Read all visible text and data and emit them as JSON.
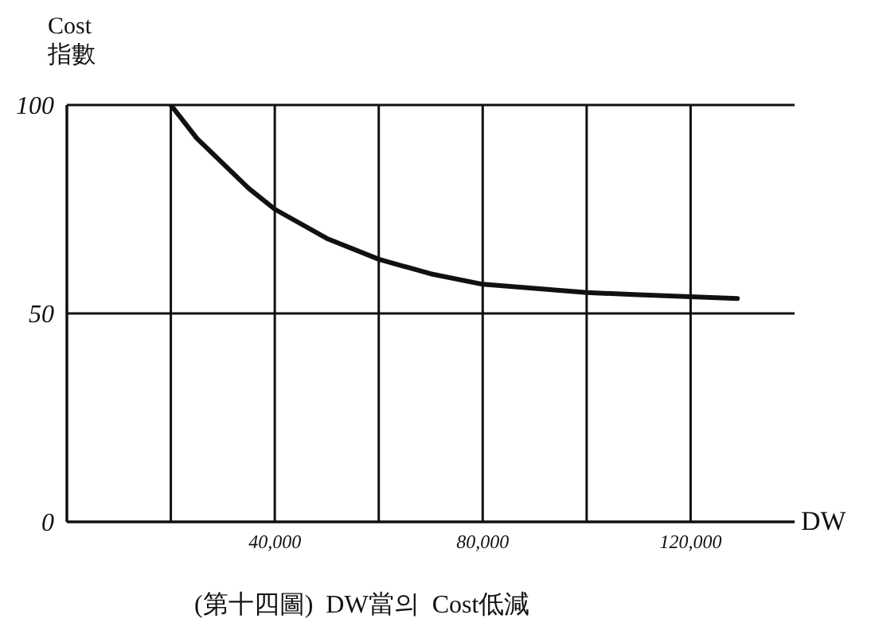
{
  "chart_data": {
    "type": "line",
    "xlabel": "DW",
    "ylabel": "Cost\n指數",
    "annotations": [
      "(第十四圖)  DW當의  Cost低減"
    ],
    "x": [
      20000,
      25000,
      30000,
      35000,
      40000,
      50000,
      60000,
      70000,
      80000,
      90000,
      100000,
      110000,
      120000,
      129000
    ],
    "series": [
      {
        "color": "#111111",
        "values": [
          100,
          92,
          86,
          80,
          75,
          68,
          63,
          59.5,
          57,
          56,
          55,
          54.5,
          54,
          53.6
        ]
      }
    ],
    "xlim": [
      0,
      140000
    ],
    "xticks": [
      {
        "value": 0,
        "label": null
      },
      {
        "value": 20000,
        "label": null
      },
      {
        "value": 40000,
        "label": "40,000"
      },
      {
        "value": 60000,
        "label": null
      },
      {
        "value": 80000,
        "label": "80,000"
      },
      {
        "value": 100000,
        "label": null
      },
      {
        "value": 120000,
        "label": "120,000"
      }
    ],
    "ylim": [
      0,
      100
    ],
    "yticks": [
      0,
      50,
      100
    ],
    "grid": true,
    "marker": "none",
    "line_style": "solid"
  }
}
